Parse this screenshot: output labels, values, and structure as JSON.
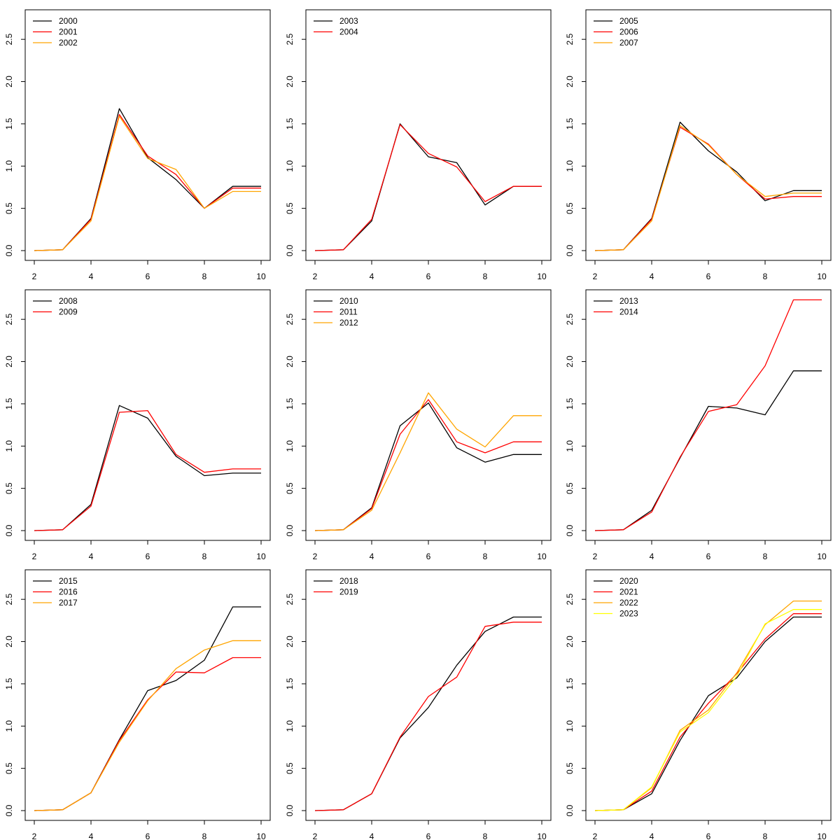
{
  "colors": {
    "frame": "#000000",
    "series_palette": [
      "#000000",
      "#ff0000",
      "#ffa500",
      "#ffff00"
    ]
  },
  "chart_data": [
    {
      "type": "line",
      "legend_position": "top-left",
      "xlim": [
        2,
        10
      ],
      "ylim": [
        0,
        2.75
      ],
      "x_ticks": [
        "2",
        "4",
        "6",
        "8",
        "10"
      ],
      "y_ticks": [
        "0.0",
        "0.5",
        "1.0",
        "1.5",
        "2.0",
        "2.5"
      ],
      "x": [
        2,
        3,
        4,
        5,
        6,
        7,
        8,
        9,
        10
      ],
      "series": [
        {
          "name": "2000",
          "color": "#000000",
          "values": [
            0,
            0.01,
            0.38,
            1.68,
            1.1,
            0.84,
            0.5,
            0.76,
            0.76
          ]
        },
        {
          "name": "2001",
          "color": "#ff0000",
          "values": [
            0,
            0.01,
            0.37,
            1.61,
            1.12,
            0.9,
            0.5,
            0.74,
            0.74
          ]
        },
        {
          "name": "2002",
          "color": "#ffa500",
          "values": [
            0,
            0.01,
            0.35,
            1.59,
            1.09,
            0.96,
            0.5,
            0.7,
            0.7
          ]
        }
      ]
    },
    {
      "type": "line",
      "legend_position": "top-left",
      "xlim": [
        2,
        10
      ],
      "ylim": [
        0,
        2.75
      ],
      "x_ticks": [
        "2",
        "4",
        "6",
        "8",
        "10"
      ],
      "y_ticks": [
        "0.0",
        "0.5",
        "1.0",
        "1.5",
        "2.0",
        "2.5"
      ],
      "x": [
        2,
        3,
        4,
        5,
        6,
        7,
        8,
        9,
        10
      ],
      "series": [
        {
          "name": "2003",
          "color": "#000000",
          "values": [
            0,
            0.01,
            0.35,
            1.5,
            1.11,
            1.04,
            0.54,
            0.76,
            0.76
          ]
        },
        {
          "name": "2004",
          "color": "#ff0000",
          "values": [
            0,
            0.01,
            0.37,
            1.49,
            1.15,
            0.99,
            0.58,
            0.76,
            0.76
          ]
        }
      ]
    },
    {
      "type": "line",
      "legend_position": "top-left",
      "xlim": [
        2,
        10
      ],
      "ylim": [
        0,
        2.75
      ],
      "x_ticks": [
        "2",
        "4",
        "6",
        "8",
        "10"
      ],
      "y_ticks": [
        "0.0",
        "0.5",
        "1.0",
        "1.5",
        "2.0",
        "2.5"
      ],
      "x": [
        2,
        3,
        4,
        5,
        6,
        7,
        8,
        9,
        10
      ],
      "series": [
        {
          "name": "2005",
          "color": "#000000",
          "values": [
            0,
            0.01,
            0.38,
            1.52,
            1.18,
            0.93,
            0.59,
            0.71,
            0.71
          ]
        },
        {
          "name": "2006",
          "color": "#ff0000",
          "values": [
            0,
            0.01,
            0.37,
            1.46,
            1.26,
            0.9,
            0.61,
            0.64,
            0.64
          ]
        },
        {
          "name": "2007",
          "color": "#ffa500",
          "values": [
            0,
            0.01,
            0.35,
            1.48,
            1.25,
            0.9,
            0.64,
            0.68,
            0.68
          ]
        }
      ]
    },
    {
      "type": "line",
      "legend_position": "top-left",
      "xlim": [
        2,
        10
      ],
      "ylim": [
        0,
        2.75
      ],
      "x_ticks": [
        "2",
        "4",
        "6",
        "8",
        "10"
      ],
      "y_ticks": [
        "0.0",
        "0.5",
        "1.0",
        "1.5",
        "2.0",
        "2.5"
      ],
      "x": [
        2,
        3,
        4,
        5,
        6,
        7,
        8,
        9,
        10
      ],
      "series": [
        {
          "name": "2008",
          "color": "#000000",
          "values": [
            0,
            0.01,
            0.31,
            1.48,
            1.33,
            0.88,
            0.65,
            0.68,
            0.68
          ]
        },
        {
          "name": "2009",
          "color": "#ff0000",
          "values": [
            0,
            0.01,
            0.29,
            1.4,
            1.42,
            0.9,
            0.69,
            0.73,
            0.73
          ]
        }
      ]
    },
    {
      "type": "line",
      "legend_position": "top-left",
      "xlim": [
        2,
        10
      ],
      "ylim": [
        0,
        2.75
      ],
      "x_ticks": [
        "2",
        "4",
        "6",
        "8",
        "10"
      ],
      "y_ticks": [
        "0.0",
        "0.5",
        "1.0",
        "1.5",
        "2.0",
        "2.5"
      ],
      "x": [
        2,
        3,
        4,
        5,
        6,
        7,
        8,
        9,
        10
      ],
      "series": [
        {
          "name": "2010",
          "color": "#000000",
          "values": [
            0,
            0.01,
            0.27,
            1.24,
            1.51,
            0.98,
            0.81,
            0.9,
            0.9
          ]
        },
        {
          "name": "2011",
          "color": "#ff0000",
          "values": [
            0,
            0.01,
            0.26,
            1.14,
            1.55,
            1.05,
            0.92,
            1.05,
            1.05
          ]
        },
        {
          "name": "2012",
          "color": "#ffa500",
          "values": [
            0,
            0.01,
            0.24,
            0.92,
            1.63,
            1.2,
            0.99,
            1.36,
            1.36
          ]
        }
      ]
    },
    {
      "type": "line",
      "legend_position": "top-left",
      "xlim": [
        2,
        10
      ],
      "ylim": [
        0,
        2.75
      ],
      "x_ticks": [
        "2",
        "4",
        "6",
        "8",
        "10"
      ],
      "y_ticks": [
        "0.0",
        "0.5",
        "1.0",
        "1.5",
        "2.0",
        "2.5"
      ],
      "x": [
        2,
        3,
        4,
        5,
        6,
        7,
        8,
        9,
        10
      ],
      "series": [
        {
          "name": "2013",
          "color": "#000000",
          "values": [
            0,
            0.01,
            0.24,
            0.86,
            1.47,
            1.45,
            1.37,
            1.89,
            1.89
          ]
        },
        {
          "name": "2014",
          "color": "#ff0000",
          "values": [
            0,
            0.01,
            0.22,
            0.87,
            1.41,
            1.49,
            1.95,
            2.73,
            2.73
          ]
        }
      ]
    },
    {
      "type": "line",
      "legend_position": "top-left",
      "xlim": [
        2,
        10
      ],
      "ylim": [
        0,
        2.75
      ],
      "x_ticks": [
        "2",
        "4",
        "6",
        "8",
        "10"
      ],
      "y_ticks": [
        "0.0",
        "0.5",
        "1.0",
        "1.5",
        "2.0",
        "2.5"
      ],
      "x": [
        2,
        3,
        4,
        5,
        6,
        7,
        8,
        9,
        10
      ],
      "series": [
        {
          "name": "2015",
          "color": "#000000",
          "values": [
            0,
            0.01,
            0.21,
            0.84,
            1.42,
            1.54,
            1.78,
            2.41,
            2.41
          ]
        },
        {
          "name": "2016",
          "color": "#ff0000",
          "values": [
            0,
            0.01,
            0.21,
            0.83,
            1.31,
            1.64,
            1.63,
            1.81,
            1.81
          ]
        },
        {
          "name": "2017",
          "color": "#ffa500",
          "values": [
            0,
            0.01,
            0.21,
            0.81,
            1.3,
            1.68,
            1.9,
            2.01,
            2.01
          ]
        }
      ]
    },
    {
      "type": "line",
      "legend_position": "top-left",
      "xlim": [
        2,
        10
      ],
      "ylim": [
        0,
        2.75
      ],
      "x_ticks": [
        "2",
        "4",
        "6",
        "8",
        "10"
      ],
      "y_ticks": [
        "0.0",
        "0.5",
        "1.0",
        "1.5",
        "2.0",
        "2.5"
      ],
      "x": [
        2,
        3,
        4,
        5,
        6,
        7,
        8,
        9,
        10
      ],
      "series": [
        {
          "name": "2018",
          "color": "#000000",
          "values": [
            0,
            0.01,
            0.2,
            0.86,
            1.22,
            1.72,
            2.12,
            2.29,
            2.29
          ]
        },
        {
          "name": "2019",
          "color": "#ff0000",
          "values": [
            0,
            0.01,
            0.2,
            0.87,
            1.35,
            1.58,
            2.18,
            2.23,
            2.23
          ]
        }
      ]
    },
    {
      "type": "line",
      "legend_position": "top-left",
      "xlim": [
        2,
        10
      ],
      "ylim": [
        0,
        2.75
      ],
      "x_ticks": [
        "2",
        "4",
        "6",
        "8",
        "10"
      ],
      "y_ticks": [
        "0.0",
        "0.5",
        "1.0",
        "1.5",
        "2.0",
        "2.5"
      ],
      "x": [
        2,
        3,
        4,
        5,
        6,
        7,
        8,
        9,
        10
      ],
      "series": [
        {
          "name": "2020",
          "color": "#000000",
          "values": [
            0,
            0.01,
            0.2,
            0.83,
            1.36,
            1.57,
            2.0,
            2.29,
            2.29
          ]
        },
        {
          "name": "2021",
          "color": "#ff0000",
          "values": [
            0,
            0.01,
            0.23,
            0.87,
            1.27,
            1.62,
            2.03,
            2.33,
            2.33
          ]
        },
        {
          "name": "2022",
          "color": "#ffa500",
          "values": [
            0,
            0.01,
            0.27,
            0.95,
            1.19,
            1.63,
            2.2,
            2.48,
            2.48
          ]
        },
        {
          "name": "2023",
          "color": "#ffff00",
          "values": [
            0,
            0.01,
            0.28,
            0.93,
            1.16,
            1.59,
            2.21,
            2.38,
            2.38
          ]
        }
      ]
    }
  ]
}
